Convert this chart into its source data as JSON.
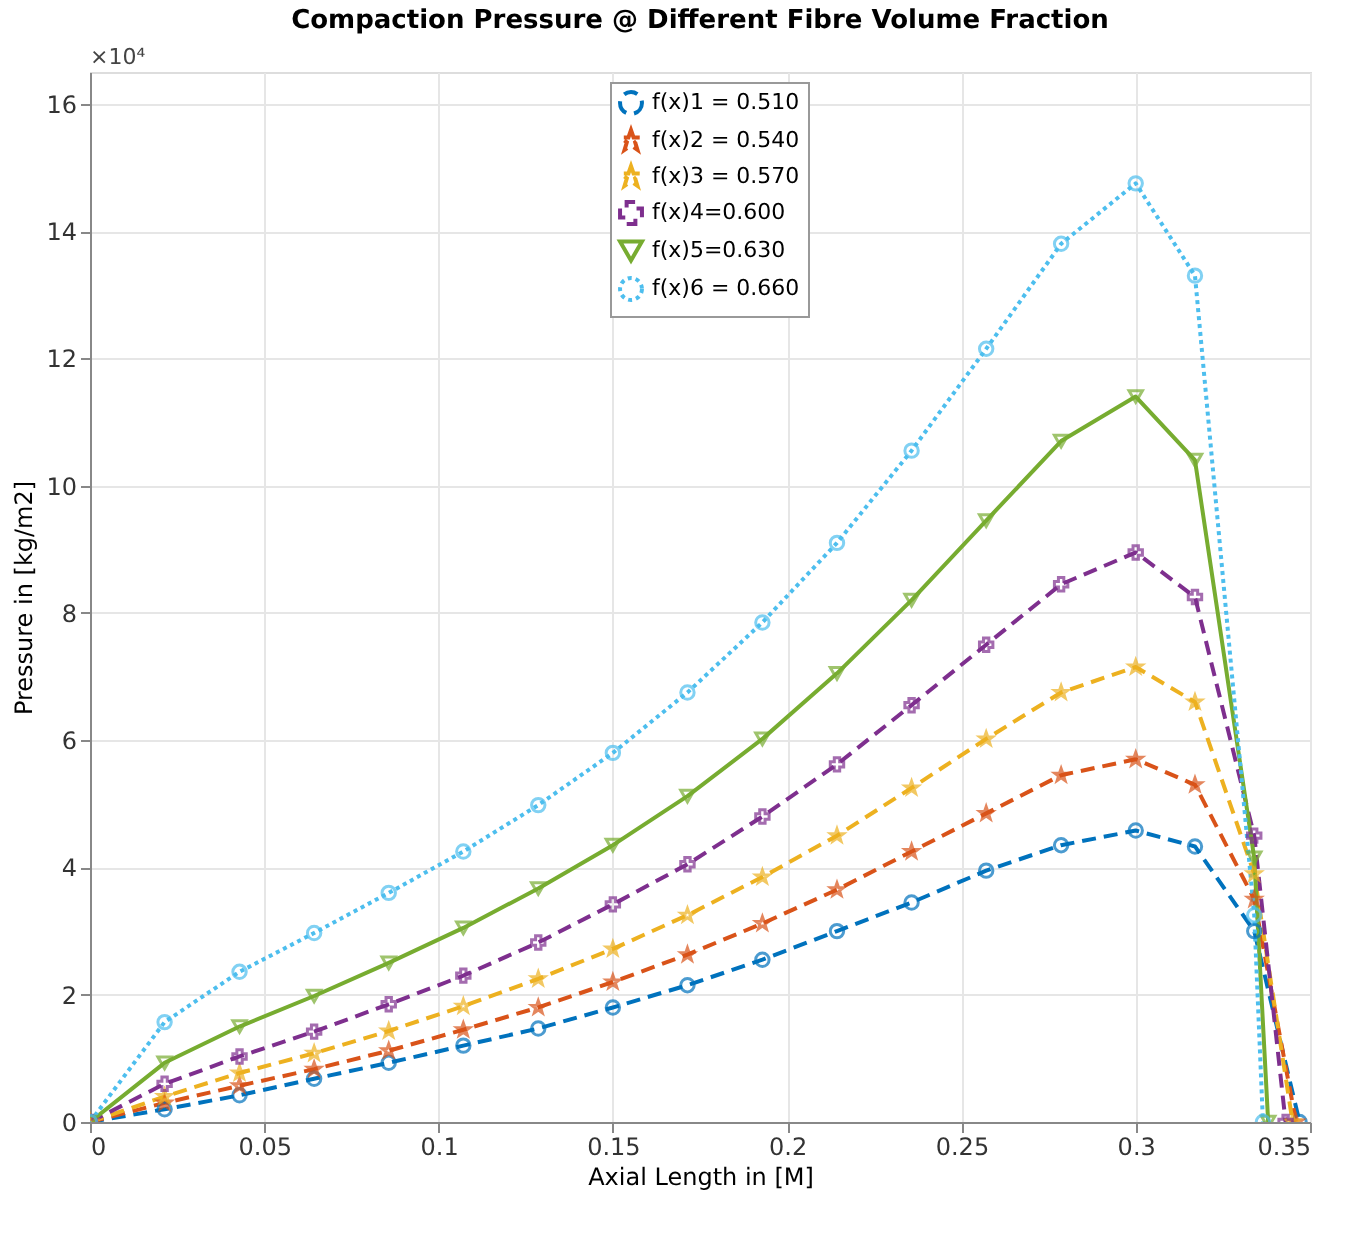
{
  "chart_data": {
    "type": "line",
    "title": "Compaction Pressure @ Different Fibre Volume Fraction",
    "xlabel": "Axial Length in [M]",
    "ylabel": "Pressure in [kg/m2]",
    "annotations": [
      "×10⁴"
    ],
    "xlim": [
      0,
      0.35
    ],
    "xticks": [
      0,
      0.05,
      0.1,
      0.15,
      0.2,
      0.25,
      0.3,
      0.35
    ],
    "ylim": [
      0,
      16.5
    ],
    "yticks": [
      0,
      2,
      4,
      6,
      8,
      10,
      12,
      14,
      16
    ],
    "grid": true,
    "legend": "top",
    "series": [
      {
        "name": "f(x)1 = 0.510",
        "color": "#0072bd",
        "line_style": "dashed",
        "marker": "circle",
        "x": [
          0,
          0.0214,
          0.0429,
          0.0643,
          0.0857,
          0.1071,
          0.1286,
          0.15,
          0.1714,
          0.1929,
          0.2143,
          0.2357,
          0.2571,
          0.2786,
          0.3,
          0.317,
          0.334,
          0.347
        ],
        "values": [
          0,
          0.2,
          0.42,
          0.68,
          0.93,
          1.2,
          1.47,
          1.8,
          2.15,
          2.55,
          3.0,
          3.45,
          3.95,
          4.35,
          4.58,
          4.33,
          3.0,
          0
        ]
      },
      {
        "name": "f(x)2 = 0.540",
        "color": "#d95319",
        "line_style": "dashed",
        "marker": "star",
        "x": [
          0,
          0.0214,
          0.0429,
          0.0643,
          0.0857,
          0.1071,
          0.1286,
          0.15,
          0.1714,
          0.1929,
          0.2143,
          0.2357,
          0.2571,
          0.2786,
          0.3,
          0.317,
          0.334,
          0.346
        ],
        "values": [
          0,
          0.3,
          0.57,
          0.83,
          1.12,
          1.45,
          1.8,
          2.2,
          2.63,
          3.12,
          3.65,
          4.25,
          4.85,
          5.45,
          5.7,
          5.3,
          3.5,
          0
        ]
      },
      {
        "name": "f(x)3 = 0.570",
        "color": "#edb120",
        "line_style": "dashed",
        "marker": "star",
        "x": [
          0,
          0.0214,
          0.0429,
          0.0643,
          0.0857,
          0.1071,
          0.1286,
          0.15,
          0.1714,
          0.1929,
          0.2143,
          0.2357,
          0.2571,
          0.2786,
          0.3,
          0.317,
          0.334,
          0.345
        ],
        "values": [
          0,
          0.4,
          0.77,
          1.08,
          1.43,
          1.82,
          2.25,
          2.72,
          3.25,
          3.85,
          4.5,
          5.25,
          6.02,
          6.75,
          7.15,
          6.6,
          3.9,
          0
        ]
      },
      {
        "name": "f(x)4=0.600",
        "color": "#7e2f8e",
        "line_style": "dashed",
        "marker": "cross",
        "x": [
          0,
          0.0214,
          0.0429,
          0.0643,
          0.0857,
          0.1071,
          0.1286,
          0.15,
          0.1714,
          0.1929,
          0.2143,
          0.2357,
          0.2571,
          0.2786,
          0.3,
          0.317,
          0.334,
          0.343
        ],
        "values": [
          0,
          0.6,
          1.03,
          1.42,
          1.85,
          2.3,
          2.82,
          3.42,
          4.05,
          4.8,
          5.62,
          6.55,
          7.5,
          8.45,
          8.95,
          8.25,
          4.5,
          0
        ]
      },
      {
        "name": "f(x)5=0.630",
        "color": "#77ac30",
        "line_style": "solid",
        "marker": "triangle",
        "x": [
          0,
          0.0214,
          0.0429,
          0.0643,
          0.0857,
          0.1071,
          0.1286,
          0.15,
          0.1714,
          0.1929,
          0.2143,
          0.2357,
          0.2571,
          0.2786,
          0.3,
          0.317,
          0.334,
          0.338
        ],
        "values": [
          0,
          0.93,
          1.5,
          1.98,
          2.5,
          3.05,
          3.67,
          4.35,
          5.12,
          6.02,
          7.05,
          8.2,
          9.45,
          10.7,
          11.4,
          10.4,
          4.15,
          0
        ]
      },
      {
        "name": "f(x)6 = 0.660",
        "color": "#4dbeee",
        "line_style": "dotted",
        "marker": "circle",
        "x": [
          0,
          0.0214,
          0.0429,
          0.0643,
          0.0857,
          0.1071,
          0.1286,
          0.15,
          0.1714,
          0.1929,
          0.2143,
          0.2357,
          0.2571,
          0.2786,
          0.3,
          0.317,
          0.334,
          0.3365
        ],
        "values": [
          0,
          1.57,
          2.36,
          2.97,
          3.6,
          4.25,
          4.98,
          5.8,
          6.75,
          7.85,
          9.1,
          10.55,
          12.15,
          13.8,
          14.75,
          13.3,
          3.25,
          0
        ]
      }
    ]
  }
}
